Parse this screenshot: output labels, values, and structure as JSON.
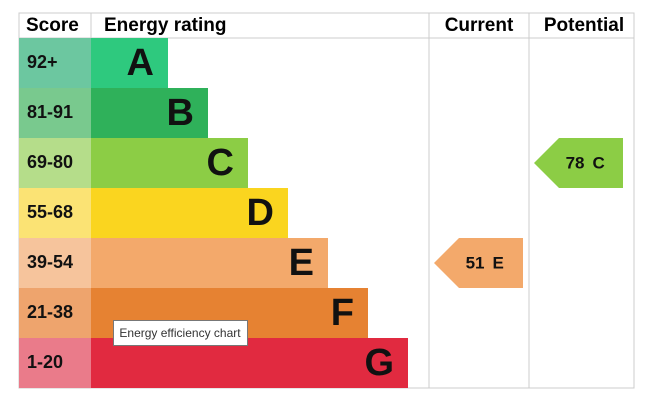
{
  "headers": {
    "score": "Score",
    "rating": "Energy rating",
    "current": "Current",
    "potential": "Potential"
  },
  "bands": [
    {
      "score": "92+",
      "letter": "A",
      "color": "#2ec97e",
      "light": "#6cc7a0"
    },
    {
      "score": "81-91",
      "letter": "B",
      "color": "#2fb15a",
      "light": "#79c98e"
    },
    {
      "score": "69-80",
      "letter": "C",
      "color": "#8ccd45",
      "light": "#b5dd8a"
    },
    {
      "score": "55-68",
      "letter": "D",
      "color": "#fad51f",
      "light": "#fbe374"
    },
    {
      "score": "39-54",
      "letter": "E",
      "color": "#f3a96b",
      "light": "#f6c49c"
    },
    {
      "score": "21-38",
      "letter": "F",
      "color": "#e68232",
      "light": "#eea46d"
    },
    {
      "score": "1-20",
      "letter": "G",
      "color": "#e12a40",
      "light": "#ea7b8a"
    }
  ],
  "current": {
    "value": 51,
    "rating": "E"
  },
  "potential": {
    "value": 78,
    "rating": "C"
  },
  "tooltip": "Energy efficiency chart"
}
